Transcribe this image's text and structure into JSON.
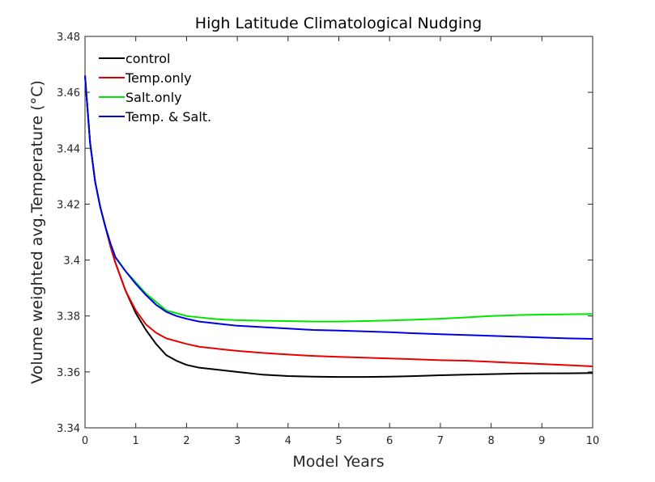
{
  "chart_data": {
    "type": "line",
    "title": "High Latitude Climatological Nudging",
    "xlabel": "Model Years",
    "ylabel": "Volume weighted avg.Temperature (°C)",
    "xlim": [
      0,
      10
    ],
    "ylim": [
      3.34,
      3.48
    ],
    "xticks": [
      0,
      1,
      2,
      3,
      4,
      5,
      6,
      7,
      8,
      9,
      10
    ],
    "yticks": [
      3.34,
      3.36,
      3.38,
      3.4,
      3.42,
      3.44,
      3.46,
      3.48
    ],
    "xtick_labels": [
      "0",
      "1",
      "2",
      "3",
      "4",
      "5",
      "6",
      "7",
      "8",
      "9",
      "10"
    ],
    "ytick_labels": [
      "3.34",
      "3.36",
      "3.38",
      "3.4",
      "3.42",
      "3.44",
      "3.46",
      "3.48"
    ],
    "grid": false,
    "legend_position": "top-left",
    "series": [
      {
        "name": "control",
        "color": "#000000",
        "x": [
          0,
          0.1,
          0.2,
          0.3,
          0.4,
          0.5,
          0.6,
          0.8,
          1.0,
          1.2,
          1.4,
          1.6,
          1.8,
          2.0,
          2.25,
          2.5,
          2.75,
          3.0,
          3.5,
          4.0,
          4.5,
          5.0,
          5.5,
          6.0,
          6.5,
          7.0,
          7.5,
          8.0,
          8.5,
          9.0,
          9.5,
          10.0
        ],
        "y": [
          3.466,
          3.442,
          3.428,
          3.419,
          3.412,
          3.405,
          3.399,
          3.389,
          3.381,
          3.375,
          3.37,
          3.366,
          3.364,
          3.3625,
          3.3615,
          3.361,
          3.3605,
          3.36,
          3.359,
          3.3585,
          3.3583,
          3.3582,
          3.3582,
          3.3583,
          3.3585,
          3.3588,
          3.359,
          3.3592,
          3.3594,
          3.3595,
          3.3595,
          3.3596
        ]
      },
      {
        "name": "Temp.only",
        "color": "#e60000",
        "x": [
          0,
          0.1,
          0.2,
          0.3,
          0.4,
          0.5,
          0.6,
          0.8,
          1.0,
          1.2,
          1.4,
          1.6,
          1.8,
          2.0,
          2.25,
          2.5,
          2.75,
          3.0,
          3.5,
          4.0,
          4.5,
          5.0,
          5.5,
          6.0,
          6.5,
          7.0,
          7.5,
          8.0,
          8.5,
          9.0,
          9.5,
          10.0
        ],
        "y": [
          3.466,
          3.442,
          3.428,
          3.419,
          3.412,
          3.405,
          3.399,
          3.389,
          3.382,
          3.377,
          3.374,
          3.372,
          3.371,
          3.37,
          3.369,
          3.3685,
          3.368,
          3.3675,
          3.3668,
          3.3662,
          3.3657,
          3.3654,
          3.3651,
          3.3648,
          3.3645,
          3.3642,
          3.364,
          3.3636,
          3.3632,
          3.3628,
          3.3624,
          3.362
        ]
      },
      {
        "name": "Salt.only",
        "color": "#00e600",
        "x": [
          0,
          0.1,
          0.2,
          0.3,
          0.4,
          0.5,
          0.6,
          0.8,
          1.0,
          1.2,
          1.4,
          1.6,
          1.8,
          2.0,
          2.25,
          2.5,
          2.75,
          3.0,
          3.5,
          4.0,
          4.5,
          5.0,
          5.5,
          6.0,
          6.5,
          7.0,
          7.5,
          8.0,
          8.5,
          9.0,
          9.5,
          10.0
        ],
        "y": [
          3.466,
          3.442,
          3.428,
          3.419,
          3.412,
          3.406,
          3.401,
          3.396,
          3.392,
          3.388,
          3.385,
          3.382,
          3.381,
          3.38,
          3.3795,
          3.379,
          3.3787,
          3.3785,
          3.3783,
          3.3782,
          3.378,
          3.378,
          3.3782,
          3.3784,
          3.3787,
          3.379,
          3.3795,
          3.38,
          3.3803,
          3.3805,
          3.3806,
          3.3807
        ]
      },
      {
        "name": "Temp. & Salt.",
        "color": "#0000e6",
        "x": [
          0,
          0.1,
          0.2,
          0.3,
          0.4,
          0.5,
          0.6,
          0.8,
          1.0,
          1.2,
          1.4,
          1.6,
          1.8,
          2.0,
          2.25,
          2.5,
          2.75,
          3.0,
          3.5,
          4.0,
          4.5,
          5.0,
          5.5,
          6.0,
          6.5,
          7.0,
          7.5,
          8.0,
          8.5,
          9.0,
          9.5,
          10.0
        ],
        "y": [
          3.466,
          3.442,
          3.428,
          3.419,
          3.412,
          3.406,
          3.401,
          3.396,
          3.3915,
          3.3875,
          3.384,
          3.3815,
          3.38,
          3.379,
          3.378,
          3.3775,
          3.377,
          3.3765,
          3.376,
          3.3755,
          3.375,
          3.3748,
          3.3745,
          3.3742,
          3.3738,
          3.3735,
          3.3732,
          3.3729,
          3.3726,
          3.3723,
          3.372,
          3.3718
        ]
      }
    ]
  }
}
